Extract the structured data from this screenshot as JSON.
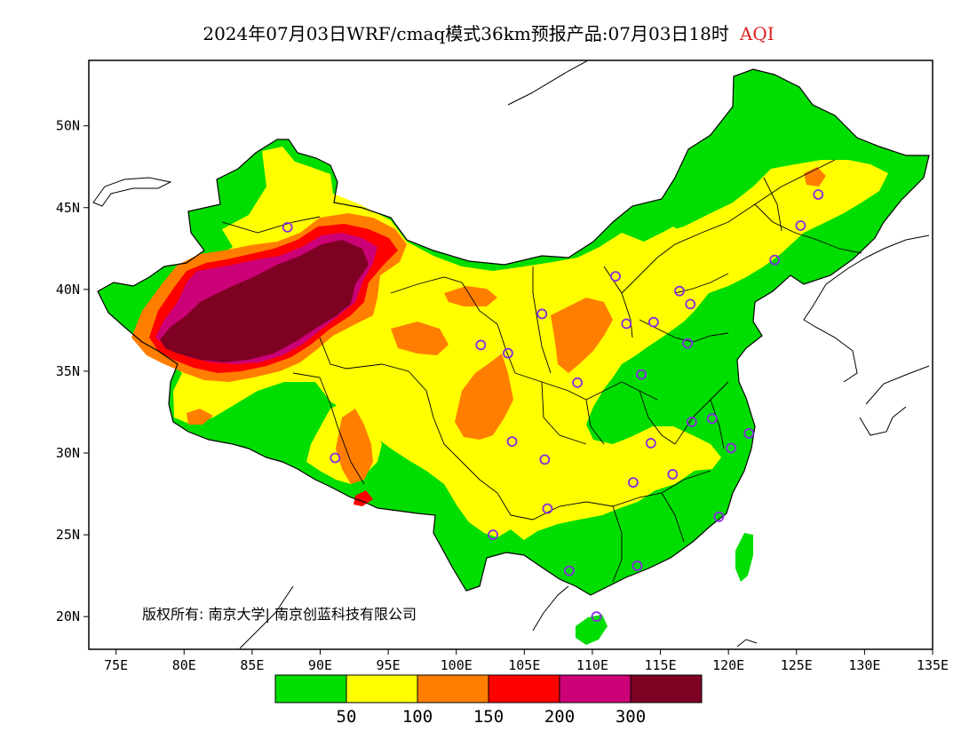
{
  "title": {
    "text": "2024年07月03日WRF/cmaq模式36km预报产品:07月03日18时",
    "pollutant": "AQI",
    "pollutant_color": "#e02020"
  },
  "copyright": "版权所有: 南京大学| 南京创蓝科技有限公司",
  "axes": {
    "lon_min": 73,
    "lon_max": 135,
    "lat_min": 18,
    "lat_max": 54,
    "lon_ticks": [
      75,
      80,
      85,
      90,
      95,
      100,
      105,
      110,
      115,
      120,
      125,
      130,
      135
    ],
    "lat_ticks": [
      20,
      25,
      30,
      35,
      40,
      45,
      50
    ],
    "lon_tick_labels": [
      "75E",
      "80E",
      "85E",
      "90E",
      "95E",
      "100E",
      "105E",
      "110E",
      "115E",
      "120E",
      "125E",
      "130E",
      "135E"
    ],
    "lat_tick_labels": [
      "20N",
      "25N",
      "30N",
      "35N",
      "40N",
      "45N",
      "50N"
    ]
  },
  "legend": {
    "colors": [
      "#00dd00",
      "#ffff00",
      "#ff7e00",
      "#ff0000",
      "#cc0077",
      "#7e0023"
    ],
    "labels": [
      "50",
      "100",
      "150",
      "200",
      "300"
    ]
  },
  "colors": {
    "good": "#00dd00",
    "moderate": "#ffff00",
    "usg": "#ff7e00",
    "unhealthy": "#ff0000",
    "very_unhealthy": "#cc0077",
    "hazardous": "#7e0023",
    "station": "#8a2be2"
  },
  "stations": [
    [
      87.6,
      43.8
    ],
    [
      91.1,
      29.7
    ],
    [
      101.8,
      36.6
    ],
    [
      103.8,
      36.1
    ],
    [
      104.1,
      30.7
    ],
    [
      106.5,
      29.6
    ],
    [
      106.7,
      26.6
    ],
    [
      102.7,
      25.0
    ],
    [
      108.3,
      22.8
    ],
    [
      110.3,
      20.0
    ],
    [
      113.3,
      23.1
    ],
    [
      108.9,
      34.3
    ],
    [
      106.3,
      38.5
    ],
    [
      111.7,
      40.8
    ],
    [
      112.5,
      37.9
    ],
    [
      114.5,
      38.0
    ],
    [
      116.4,
      39.9
    ],
    [
      117.2,
      39.1
    ],
    [
      117.0,
      36.7
    ],
    [
      113.6,
      34.8
    ],
    [
      114.3,
      30.6
    ],
    [
      113.0,
      28.2
    ],
    [
      115.9,
      28.7
    ],
    [
      117.3,
      31.9
    ],
    [
      118.8,
      32.1
    ],
    [
      120.2,
      30.3
    ],
    [
      121.5,
      31.2
    ],
    [
      119.3,
      26.1
    ],
    [
      123.4,
      41.8
    ],
    [
      125.3,
      43.9
    ],
    [
      126.6,
      45.8
    ]
  ]
}
